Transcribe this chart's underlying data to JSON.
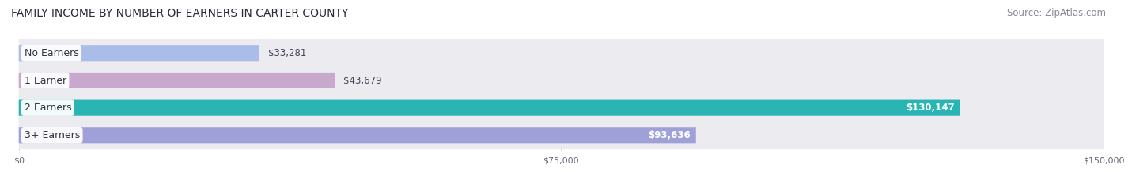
{
  "title": "FAMILY INCOME BY NUMBER OF EARNERS IN CARTER COUNTY",
  "source": "Source: ZipAtlas.com",
  "categories": [
    "No Earners",
    "1 Earner",
    "2 Earners",
    "3+ Earners"
  ],
  "values": [
    33281,
    43679,
    130147,
    93636
  ],
  "max_value": 150000,
  "bar_colors": [
    "#aabde8",
    "#c8a8cc",
    "#2ab5b5",
    "#a0a0d8"
  ],
  "bar_bg_color": "#e4e4ec",
  "label_bg_colors": [
    "#aabde8",
    "#c8a8cc",
    "#2ab5b5",
    "#a0a0d8"
  ],
  "value_inside": [
    false,
    false,
    true,
    true
  ],
  "value_labels": [
    "$33,281",
    "$43,679",
    "$130,147",
    "$93,636"
  ],
  "x_ticks": [
    0,
    75000,
    150000
  ],
  "x_tick_labels": [
    "$0",
    "$75,000",
    "$150,000"
  ],
  "title_fontsize": 10,
  "source_fontsize": 8.5,
  "label_fontsize": 9,
  "value_fontsize": 8.5,
  "background_color": "#ffffff",
  "row_bg_color": "#ebebf0"
}
